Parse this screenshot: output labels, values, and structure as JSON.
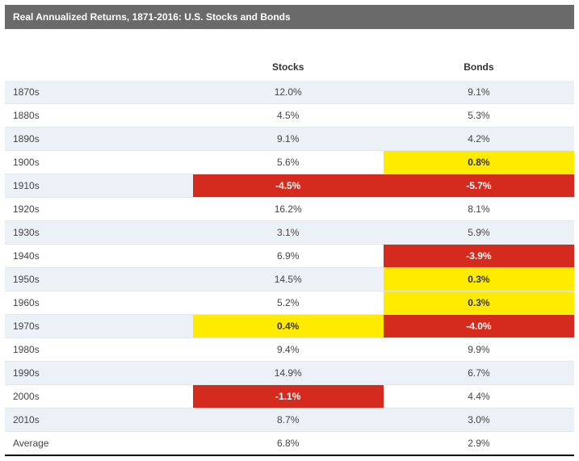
{
  "title": "Real Annualized Returns, 1871-2016: U.S. Stocks and Bonds",
  "columns": {
    "decade": "",
    "stocks": "Stocks",
    "bonds": "Bonds"
  },
  "highlight_colors": {
    "default_alt": "#ebf1f7",
    "default_plain": "#ffffff",
    "red": "#d52b1e",
    "yellow": "#ffeb00",
    "header_bg": "#6a6a6a",
    "header_text": "#ffffff",
    "body_text": "#444444",
    "border": "#e6e6e6"
  },
  "rows": [
    {
      "decade": "1870s",
      "stocks": "12.0%",
      "stocks_bg": "default",
      "bonds": "9.1%",
      "bonds_bg": "default",
      "stripe": "alt"
    },
    {
      "decade": "1880s",
      "stocks": "4.5%",
      "stocks_bg": "default",
      "bonds": "5.3%",
      "bonds_bg": "default",
      "stripe": "plain"
    },
    {
      "decade": "1890s",
      "stocks": "9.1%",
      "stocks_bg": "default",
      "bonds": "4.2%",
      "bonds_bg": "default",
      "stripe": "alt"
    },
    {
      "decade": "1900s",
      "stocks": "5.6%",
      "stocks_bg": "default",
      "bonds": "0.8%",
      "bonds_bg": "yellow",
      "stripe": "plain"
    },
    {
      "decade": "1910s",
      "stocks": "-4.5%",
      "stocks_bg": "red",
      "bonds": "-5.7%",
      "bonds_bg": "red",
      "stripe": "alt"
    },
    {
      "decade": "1920s",
      "stocks": "16.2%",
      "stocks_bg": "default",
      "bonds": "8.1%",
      "bonds_bg": "default",
      "stripe": "plain"
    },
    {
      "decade": "1930s",
      "stocks": "3.1%",
      "stocks_bg": "default",
      "bonds": "5.9%",
      "bonds_bg": "default",
      "stripe": "alt"
    },
    {
      "decade": "1940s",
      "stocks": "6.9%",
      "stocks_bg": "default",
      "bonds": "-3.9%",
      "bonds_bg": "red",
      "stripe": "plain"
    },
    {
      "decade": "1950s",
      "stocks": "14.5%",
      "stocks_bg": "default",
      "bonds": "0.3%",
      "bonds_bg": "yellow",
      "stripe": "alt"
    },
    {
      "decade": "1960s",
      "stocks": "5.2%",
      "stocks_bg": "default",
      "bonds": "0.3%",
      "bonds_bg": "yellow",
      "stripe": "plain"
    },
    {
      "decade": "1970s",
      "stocks": "0.4%",
      "stocks_bg": "yellow",
      "bonds": "-4.0%",
      "bonds_bg": "red",
      "stripe": "alt"
    },
    {
      "decade": "1980s",
      "stocks": "9.4%",
      "stocks_bg": "default",
      "bonds": "9.9%",
      "bonds_bg": "default",
      "stripe": "plain"
    },
    {
      "decade": "1990s",
      "stocks": "14.9%",
      "stocks_bg": "default",
      "bonds": "6.7%",
      "bonds_bg": "default",
      "stripe": "alt"
    },
    {
      "decade": "2000s",
      "stocks": "-1.1%",
      "stocks_bg": "red",
      "bonds": "4.4%",
      "bonds_bg": "default",
      "stripe": "plain"
    },
    {
      "decade": "2010s",
      "stocks": "8.7%",
      "stocks_bg": "default",
      "bonds": "3.0%",
      "bonds_bg": "default",
      "stripe": "alt"
    }
  ],
  "average_row": {
    "decade": "Average",
    "stocks": "6.8%",
    "bonds": "2.9%"
  }
}
